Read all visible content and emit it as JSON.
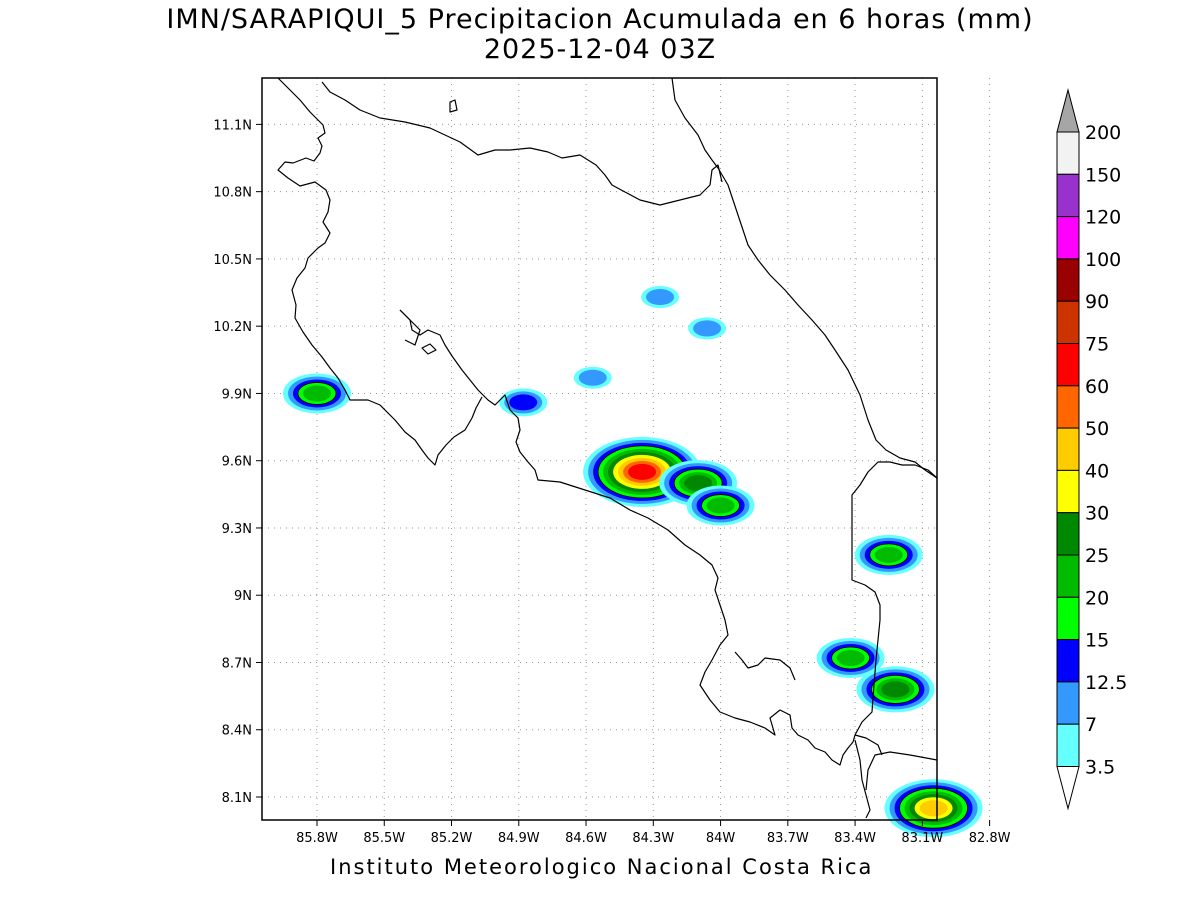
{
  "title": {
    "line1": "IMN/SARAPIQUI_5 Precipitacion Acumulada en 6 horas (mm)",
    "line2": "2025-12-04 03Z"
  },
  "footer": "Instituto Meteorologico Nacional Costa Rica",
  "map": {
    "lat_ticks": [
      {
        "value": 11.1,
        "label": "11.1N"
      },
      {
        "value": 10.8,
        "label": "10.8N"
      },
      {
        "value": 10.5,
        "label": "10.5N"
      },
      {
        "value": 10.2,
        "label": "10.2N"
      },
      {
        "value": 9.9,
        "label": "9.9N"
      },
      {
        "value": 9.6,
        "label": "9.6N"
      },
      {
        "value": 9.3,
        "label": "9.3N"
      },
      {
        "value": 9.0,
        "label": "9N"
      },
      {
        "value": 8.7,
        "label": "8.7N"
      },
      {
        "value": 8.4,
        "label": "8.4N"
      },
      {
        "value": 8.1,
        "label": "8.1N"
      }
    ],
    "lon_ticks": [
      {
        "value": -85.8,
        "label": "85.8W"
      },
      {
        "value": -85.5,
        "label": "85.5W"
      },
      {
        "value": -85.2,
        "label": "85.2W"
      },
      {
        "value": -84.9,
        "label": "84.9W"
      },
      {
        "value": -84.6,
        "label": "84.6W"
      },
      {
        "value": -84.3,
        "label": "84.3W"
      },
      {
        "value": -84.0,
        "label": "84W"
      },
      {
        "value": -83.7,
        "label": "83.7W"
      },
      {
        "value": -83.4,
        "label": "83.4W"
      },
      {
        "value": -83.1,
        "label": "83.1W"
      },
      {
        "value": -82.8,
        "label": "82.8W"
      }
    ],
    "grid": "dotted",
    "precip_cells": [
      {
        "lon": -84.35,
        "lat": 9.55,
        "max": 60
      },
      {
        "lon": -84.1,
        "lat": 9.5,
        "max": 25
      },
      {
        "lon": -84.0,
        "lat": 9.4,
        "max": 20
      },
      {
        "lon": -85.8,
        "lat": 9.9,
        "max": 20
      },
      {
        "lon": -84.88,
        "lat": 9.86,
        "max": 12.5
      },
      {
        "lon": -83.25,
        "lat": 9.18,
        "max": 20
      },
      {
        "lon": -83.22,
        "lat": 8.58,
        "max": 25
      },
      {
        "lon": -83.42,
        "lat": 8.72,
        "max": 20
      },
      {
        "lon": -83.05,
        "lat": 8.05,
        "max": 40
      },
      {
        "lon": -84.27,
        "lat": 10.33,
        "max": 7
      },
      {
        "lon": -84.06,
        "lat": 10.19,
        "max": 7
      },
      {
        "lon": -84.57,
        "lat": 9.97,
        "max": 7
      }
    ]
  },
  "colorbar": {
    "labels": [
      "200",
      "150",
      "120",
      "100",
      "90",
      "75",
      "60",
      "50",
      "40",
      "30",
      "25",
      "20",
      "15",
      "12.5",
      "7",
      "3.5"
    ],
    "colors": [
      "#f2f2f2",
      "#9932cc",
      "#ff00ff",
      "#990000",
      "#cc3300",
      "#ff0000",
      "#ff6600",
      "#ffcc00",
      "#ffff00",
      "#008800",
      "#00bb00",
      "#00ff00",
      "#0000ff",
      "#3399ff",
      "#66ffff"
    ],
    "over_color": "#a6a6a6",
    "under_color": "#ffffff"
  }
}
